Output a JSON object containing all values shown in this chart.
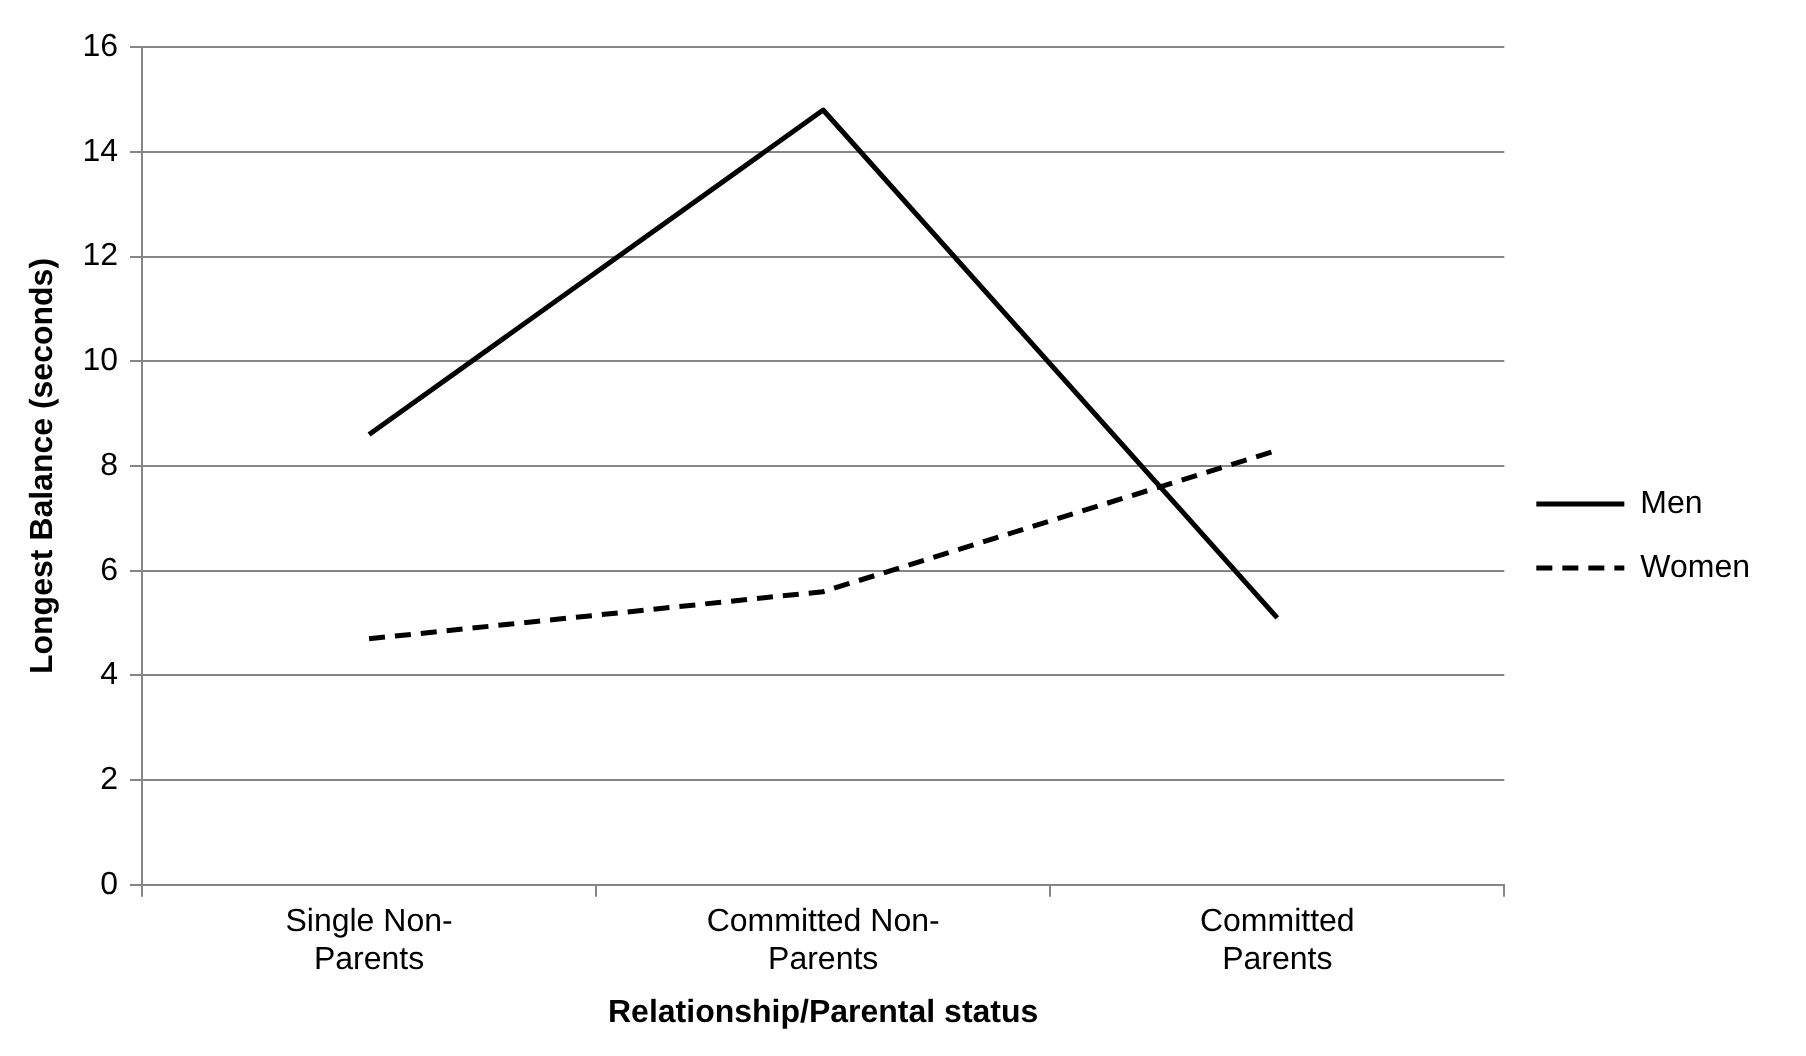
{
  "chart_data": {
    "type": "line",
    "xlabel": "Relationship/Parental status",
    "ylabel": "Longest Balance (seconds)",
    "categories": [
      "Single Non-Parents",
      "Committed Non-Parents",
      "Committed Parents"
    ],
    "series": [
      {
        "name": "Men",
        "color": "#000000",
        "values": [
          8.6,
          14.8,
          5.1
        ],
        "line_style": "solid"
      },
      {
        "name": "Women",
        "color": "#000000",
        "values": [
          4.7,
          5.6,
          8.3
        ],
        "line_style": "dashed"
      }
    ],
    "ylim": [
      0,
      16
    ],
    "yticks": [
      0,
      2,
      4,
      6,
      8,
      10,
      12,
      14,
      16
    ],
    "grid": "y",
    "legend": "right",
    "marker": "none"
  }
}
